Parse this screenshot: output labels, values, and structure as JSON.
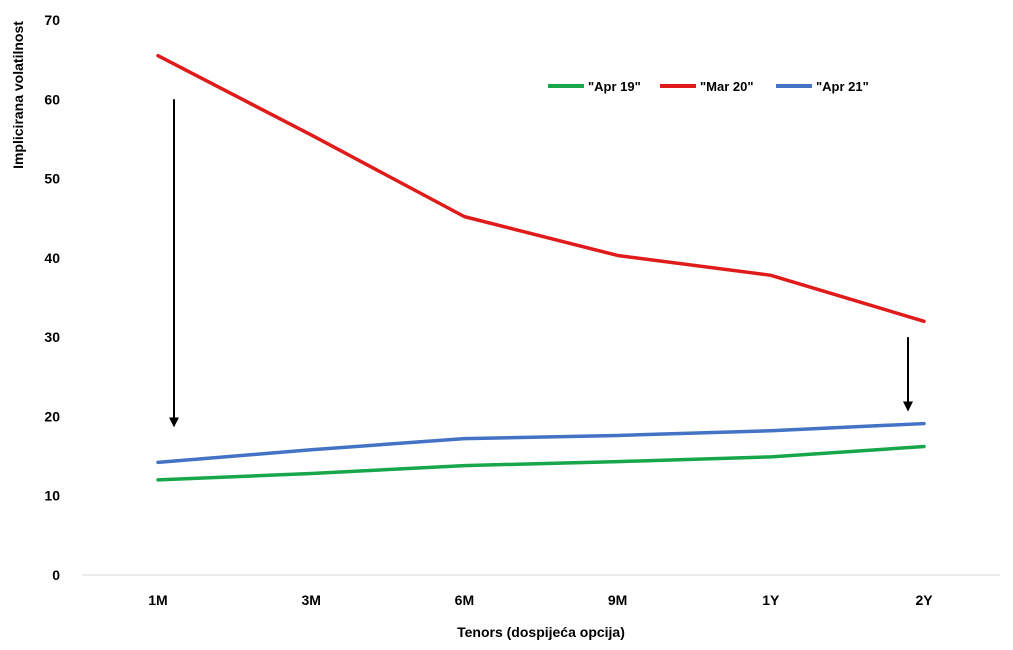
{
  "chart_data": {
    "type": "line",
    "title": "",
    "xlabel": "Tenors (dospijeća opcija)",
    "ylabel": "Implicirana volatilnost",
    "categories": [
      "1M",
      "3M",
      "6M",
      "9M",
      "1Y",
      "2Y"
    ],
    "ylim": [
      0,
      70
    ],
    "yticks": [
      0,
      10,
      20,
      30,
      40,
      50,
      60,
      70
    ],
    "grid": false,
    "legend_position": "top-right",
    "series": [
      {
        "name": "\"Apr 19\"",
        "color": "#17a64a",
        "values": [
          12.0,
          12.8,
          13.8,
          14.3,
          14.9,
          16.2
        ]
      },
      {
        "name": "\"Mar 20\"",
        "color": "#e01b1b",
        "values": [
          65.5,
          55.5,
          45.2,
          40.3,
          37.8,
          32.0
        ]
      },
      {
        "name": "\"Apr 21\"",
        "color": "#4472c4",
        "values": [
          14.2,
          15.8,
          17.2,
          17.6,
          18.2,
          19.1
        ]
      }
    ],
    "annotations": [
      {
        "type": "arrow",
        "category": "1M",
        "from_y": 60,
        "to_y": 19,
        "color": "#000000"
      },
      {
        "type": "arrow",
        "category": "2Y",
        "from_y": 30,
        "to_y": 21,
        "color": "#000000"
      }
    ]
  }
}
